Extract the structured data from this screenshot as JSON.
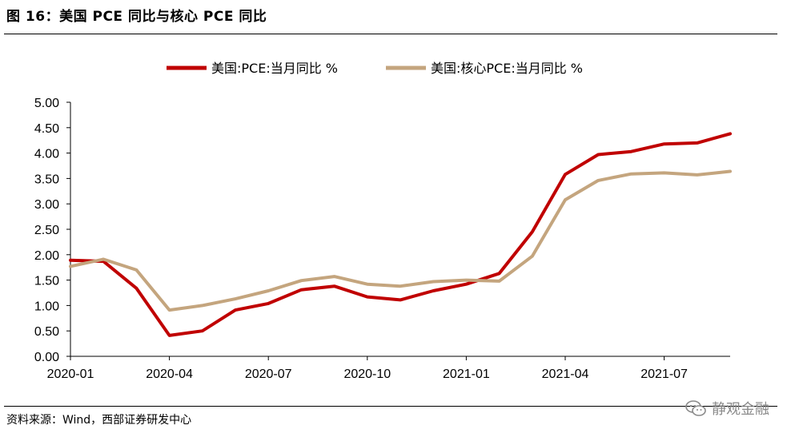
{
  "figure": {
    "title": "图 16：美国 PCE 同比与核心 PCE 同比",
    "source": "资料来源：Wind，西部证券研发中心",
    "watermark": "静观金融"
  },
  "chart_data": {
    "type": "line",
    "title": "图 16：美国 PCE 同比与核心 PCE 同比",
    "xlabel": "",
    "ylabel": "",
    "ylim": [
      0,
      5
    ],
    "yticks": [
      "0.00",
      "0.50",
      "1.00",
      "1.50",
      "2.00",
      "2.50",
      "3.00",
      "3.50",
      "4.00",
      "4.50",
      "5.00"
    ],
    "x": [
      "2020-01",
      "2020-02",
      "2020-03",
      "2020-04",
      "2020-05",
      "2020-06",
      "2020-07",
      "2020-08",
      "2020-09",
      "2020-10",
      "2020-11",
      "2020-12",
      "2021-01",
      "2021-02",
      "2021-03",
      "2021-04",
      "2021-05",
      "2021-06",
      "2021-07",
      "2021-08",
      "2021-09"
    ],
    "xticks": [
      "2020-01",
      "2020-04",
      "2020-07",
      "2020-10",
      "2021-01",
      "2021-04",
      "2021-07"
    ],
    "legend_position": "top-center",
    "grid": false,
    "series": [
      {
        "name": "美国:PCE:当月同比 %",
        "color": "#C00000",
        "values": [
          1.89,
          1.87,
          1.34,
          0.41,
          0.5,
          0.91,
          1.04,
          1.31,
          1.38,
          1.17,
          1.11,
          1.29,
          1.42,
          1.63,
          2.45,
          3.58,
          3.97,
          4.03,
          4.18,
          4.2,
          4.38
        ]
      },
      {
        "name": "美国:核心PCE:当月同比 %",
        "color": "#C4A57E",
        "values": [
          1.77,
          1.91,
          1.7,
          0.91,
          1.0,
          1.13,
          1.29,
          1.49,
          1.57,
          1.42,
          1.38,
          1.47,
          1.5,
          1.48,
          1.97,
          3.08,
          3.46,
          3.59,
          3.61,
          3.57,
          3.64
        ]
      }
    ]
  }
}
